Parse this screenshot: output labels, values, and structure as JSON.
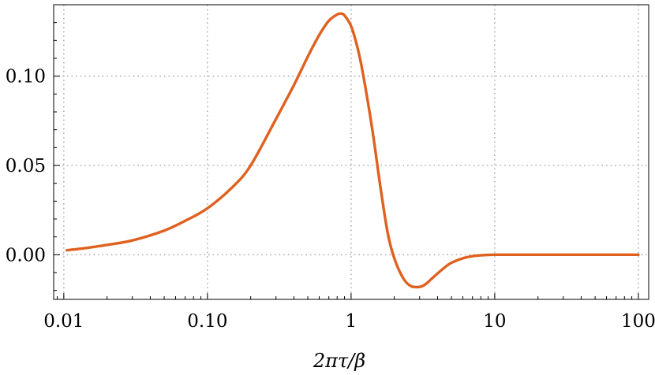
{
  "chart_data": {
    "type": "line",
    "title": "",
    "xlabel": "2πτ/β",
    "ylabel": "",
    "x_scale": "log",
    "xlim": [
      0.01,
      100
    ],
    "ylim": [
      -0.025,
      0.14
    ],
    "grid": true,
    "grid_style": "dotted",
    "legend": "none",
    "x_ticks": [
      {
        "value": 0.01,
        "label": "0.01"
      },
      {
        "value": 0.1,
        "label": "0.10"
      },
      {
        "value": 1,
        "label": "1"
      },
      {
        "value": 10,
        "label": "10"
      },
      {
        "value": 100,
        "label": "100"
      }
    ],
    "y_ticks": [
      {
        "value": 0.0,
        "label": "0.00"
      },
      {
        "value": 0.05,
        "label": "0.05"
      },
      {
        "value": 0.1,
        "label": "0.10"
      }
    ],
    "colors": {
      "series": "#e0611f",
      "grid": "#b0b0b0",
      "axis": "#000000"
    },
    "series": [
      {
        "x": [
          0.0105,
          0.015,
          0.02,
          0.03,
          0.05,
          0.07,
          0.1,
          0.15,
          0.2,
          0.3,
          0.4,
          0.5,
          0.6,
          0.7,
          0.8,
          0.85,
          0.9,
          1.0,
          1.1,
          1.2,
          1.4,
          1.6,
          1.8,
          2.0,
          2.3,
          2.6,
          3.0,
          3.3,
          3.6,
          4.0,
          4.5,
          5.0,
          6.0,
          7.0,
          8.0,
          10,
          15,
          20,
          30,
          50,
          100
        ],
        "y": [
          0.0025,
          0.004,
          0.0055,
          0.008,
          0.0135,
          0.019,
          0.026,
          0.038,
          0.05,
          0.076,
          0.095,
          0.111,
          0.123,
          0.131,
          0.1345,
          0.135,
          0.134,
          0.128,
          0.117,
          0.103,
          0.071,
          0.038,
          0.012,
          -0.002,
          -0.013,
          -0.0175,
          -0.018,
          -0.0165,
          -0.0138,
          -0.0105,
          -0.007,
          -0.0045,
          -0.002,
          -0.0008,
          -0.0003,
          0.0,
          0.0,
          0.0,
          0.0,
          0.0,
          0.0
        ]
      }
    ]
  }
}
